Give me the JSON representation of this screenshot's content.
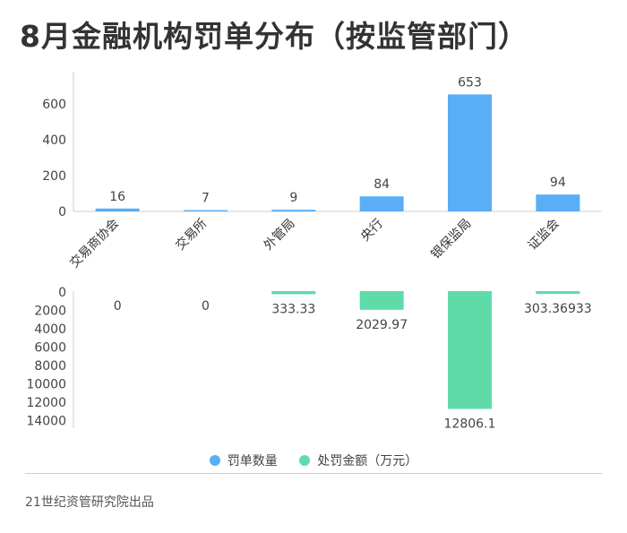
{
  "title": "8月金融机构罚单分布（按监管部门）",
  "source": "21世纪资管研究院出品",
  "colors": {
    "count": "#5aaef5",
    "amount": "#5fdbaa",
    "axis": "#cccccc",
    "text": "#444444"
  },
  "chart_data": {
    "type": "bar",
    "categories": [
      "交易商协会",
      "交易所",
      "外管局",
      "央行",
      "银保监局",
      "证监会"
    ],
    "series": [
      {
        "name": "罚单数量",
        "values": [
          16,
          7,
          9,
          84,
          653,
          94
        ],
        "labels": [
          "16",
          "7",
          "9",
          "84",
          "653",
          "94"
        ],
        "ylim": [
          0,
          700
        ],
        "yticks": [
          "0",
          "200",
          "400",
          "600"
        ],
        "ytick_values": [
          0,
          200,
          400,
          600
        ]
      },
      {
        "name": "处罚金额（万元）",
        "values": [
          0,
          0,
          333.33,
          2029.97,
          12806.1,
          303.36933
        ],
        "labels": [
          "0",
          "0",
          "333.33",
          "2029.97",
          "12806.1",
          "303.36933"
        ],
        "ylim": [
          0,
          15000
        ],
        "inverted": true,
        "yticks": [
          "0",
          "2000",
          "4000",
          "6000",
          "8000",
          "10000",
          "12000",
          "14000"
        ],
        "ytick_values": [
          0,
          2000,
          4000,
          6000,
          8000,
          10000,
          12000,
          14000
        ]
      }
    ],
    "legend_position": "bottom"
  }
}
